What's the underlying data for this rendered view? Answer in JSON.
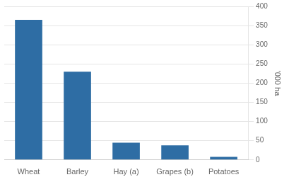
{
  "chart_data": {
    "type": "bar",
    "categories": [
      "Wheat",
      "Barley",
      "Hay (a)",
      "Grapes (b)",
      "Potatoes"
    ],
    "values": [
      365,
      230,
      45,
      38,
      8
    ],
    "color": "#2E6DA4",
    "ylabel": "'000 ha",
    "ylim": [
      0,
      400
    ],
    "yticks": [
      0,
      50,
      100,
      150,
      200,
      250,
      300,
      350,
      400
    ],
    "grid": true
  }
}
